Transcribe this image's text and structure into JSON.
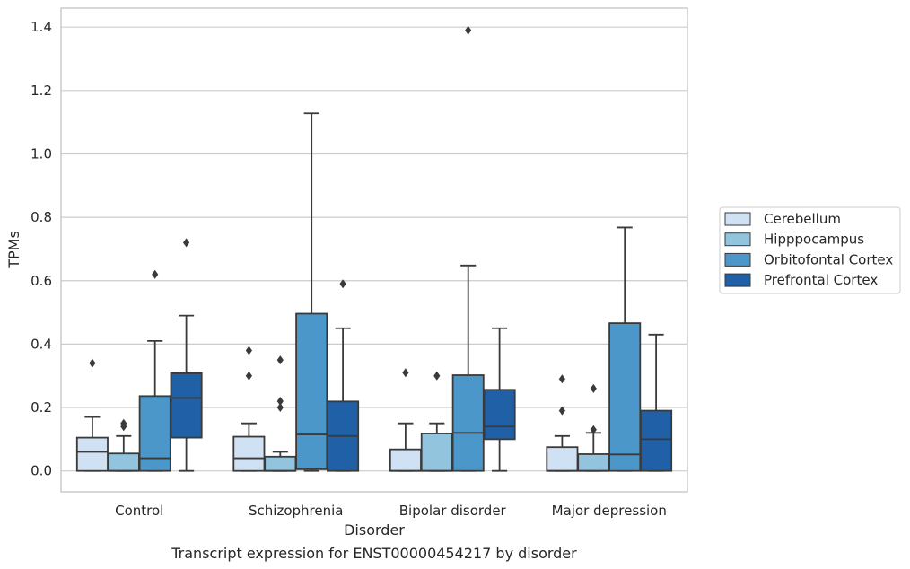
{
  "chart_data": {
    "type": "box",
    "caption": "Transcript expression for ENST00000454217 by disorder",
    "xlabel": "Disorder",
    "ylabel": "TPMs",
    "ylim": [
      -0.066,
      1.46
    ],
    "yticks": [
      "0.0",
      "0.2",
      "0.4",
      "0.6",
      "0.8",
      "1.0",
      "1.2",
      "1.4"
    ],
    "grid": "horizontal",
    "legend_position": "right",
    "categories": [
      "Control",
      "Schizophrenia",
      "Bipolar disorder",
      "Major depression"
    ],
    "series": [
      {
        "name": "Cerebellum",
        "color": "#cfe1f2",
        "boxes": [
          {
            "whislo": 0.0,
            "q1": 0.0,
            "med": 0.06,
            "q3": 0.105,
            "whishi": 0.17,
            "fliers": [
              0.34
            ]
          },
          {
            "whislo": 0.0,
            "q1": 0.0,
            "med": 0.04,
            "q3": 0.108,
            "whishi": 0.15,
            "fliers": [
              0.3,
              0.38
            ]
          },
          {
            "whislo": 0.0,
            "q1": 0.0,
            "med": 0.0,
            "q3": 0.068,
            "whishi": 0.15,
            "fliers": [
              0.31
            ]
          },
          {
            "whislo": 0.0,
            "q1": 0.0,
            "med": 0.0,
            "q3": 0.075,
            "whishi": 0.11,
            "fliers": [
              0.19,
              0.29
            ]
          }
        ]
      },
      {
        "name": "Hipppocampus",
        "color": "#93c4de",
        "boxes": [
          {
            "whislo": 0.0,
            "q1": 0.0,
            "med": 0.0,
            "q3": 0.055,
            "whishi": 0.11,
            "fliers": [
              0.14,
              0.15
            ]
          },
          {
            "whislo": 0.0,
            "q1": 0.0,
            "med": 0.0,
            "q3": 0.045,
            "whishi": 0.06,
            "fliers": [
              0.2,
              0.22,
              0.35
            ]
          },
          {
            "whislo": 0.0,
            "q1": 0.0,
            "med": 0.0,
            "q3": 0.118,
            "whishi": 0.15,
            "fliers": [
              0.3
            ]
          },
          {
            "whislo": 0.0,
            "q1": 0.0,
            "med": 0.0,
            "q3": 0.053,
            "whishi": 0.12,
            "fliers": [
              0.13,
              0.26
            ]
          }
        ]
      },
      {
        "name": "Orbitofontal Cortex",
        "color": "#4b97c9",
        "boxes": [
          {
            "whislo": 0.0,
            "q1": 0.0,
            "med": 0.04,
            "q3": 0.236,
            "whishi": 0.41,
            "fliers": [
              0.62
            ]
          },
          {
            "whislo": 0.0,
            "q1": 0.005,
            "med": 0.115,
            "q3": 0.496,
            "whishi": 1.128,
            "fliers": []
          },
          {
            "whislo": 0.0,
            "q1": 0.0,
            "med": 0.12,
            "q3": 0.302,
            "whishi": 0.648,
            "fliers": [
              1.39
            ]
          },
          {
            "whislo": 0.0,
            "q1": 0.0,
            "med": 0.052,
            "q3": 0.466,
            "whishi": 0.768,
            "fliers": []
          }
        ]
      },
      {
        "name": "Prefrontal Cortex",
        "color": "#2060a6",
        "boxes": [
          {
            "whislo": 0.0,
            "q1": 0.105,
            "med": 0.23,
            "q3": 0.308,
            "whishi": 0.49,
            "fliers": [
              0.72
            ]
          },
          {
            "whislo": 0.0,
            "q1": 0.0,
            "med": 0.11,
            "q3": 0.219,
            "whishi": 0.45,
            "fliers": [
              0.59
            ]
          },
          {
            "whislo": 0.0,
            "q1": 0.1,
            "med": 0.14,
            "q3": 0.256,
            "whishi": 0.45,
            "fliers": []
          },
          {
            "whislo": 0.0,
            "q1": 0.0,
            "med": 0.1,
            "q3": 0.19,
            "whishi": 0.43,
            "fliers": []
          }
        ]
      }
    ]
  }
}
